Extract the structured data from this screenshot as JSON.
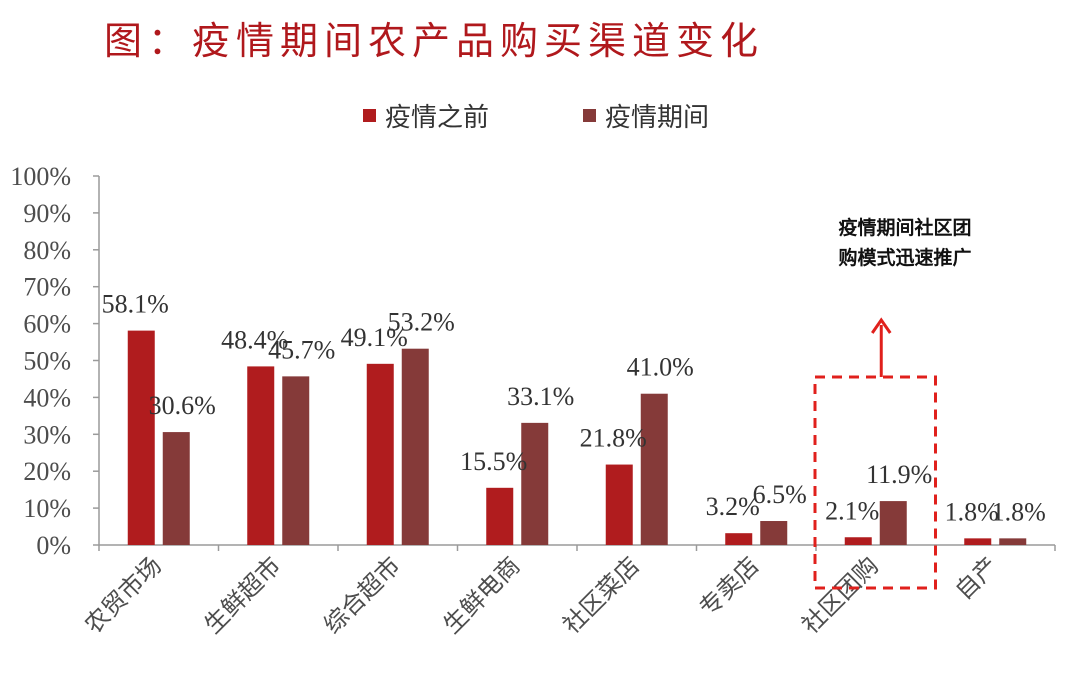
{
  "title": "图：疫情期间农产品购买渠道变化",
  "chart_data": {
    "type": "bar",
    "title": "图：疫情期间农产品购买渠道变化",
    "xlabel": "",
    "ylabel": "",
    "ylim": [
      0,
      100
    ],
    "y_ticks": [
      "0%",
      "10%",
      "20%",
      "30%",
      "40%",
      "50%",
      "60%",
      "70%",
      "80%",
      "90%",
      "100%"
    ],
    "categories": [
      "农贸市场",
      "生鲜超市",
      "综合超市",
      "生鲜电商",
      "社区菜店",
      "专卖店",
      "社区团购",
      "自产"
    ],
    "series": [
      {
        "name": "疫情之前",
        "color": "#b01c1e",
        "values": [
          58.1,
          48.4,
          49.1,
          15.5,
          21.8,
          3.2,
          2.1,
          1.8
        ],
        "labels": [
          "58.1%",
          "48.4%",
          "49.1%",
          "15.5%",
          "21.8%",
          "3.2%",
          "2.1%",
          "1.8%"
        ]
      },
      {
        "name": "疫情期间",
        "color": "#853a39",
        "values": [
          30.6,
          45.7,
          53.2,
          33.1,
          41.0,
          6.5,
          11.9,
          1.8
        ],
        "labels": [
          "30.6%",
          "45.7%",
          "53.2%",
          "33.1%",
          "41.0%",
          "6.5%",
          "11.9%",
          "1.8%"
        ]
      }
    ],
    "legend": {
      "placement": "top-center"
    },
    "grid": false,
    "annotation": {
      "lines": [
        "疫情期间社区团",
        "购模式迅速推广"
      ],
      "target_category": "社区团购",
      "color": "#e0201c"
    }
  }
}
